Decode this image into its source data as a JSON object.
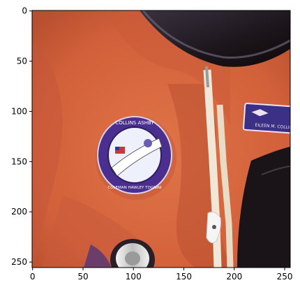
{
  "figure": {
    "x_axis": {
      "ticks": [
        0,
        50,
        100,
        150,
        200,
        250
      ],
      "range": [
        -0.5,
        255.5
      ]
    },
    "y_axis": {
      "ticks": [
        0,
        50,
        100,
        150,
        200,
        250
      ],
      "range": [
        -0.5,
        255.5
      ],
      "inverted": true
    },
    "image": {
      "description_tags": [
        "orange-flight-suit",
        "helmet-ring",
        "mission-patch",
        "name-tag",
        "harness-straps"
      ],
      "patch_text": {
        "top": "COLLINS ASHBY",
        "bottom": "COLEMAN HAWLEY TOGNINI"
      },
      "name_tag_text": "EILEEN M. COLLINS"
    },
    "colors": {
      "suit": "#d8663d",
      "suit_shadow": "#a8472a",
      "patch_purple": "#4b2f8f",
      "helmet_dark": "#2a1f26",
      "strap": "#f1e7d6"
    }
  }
}
